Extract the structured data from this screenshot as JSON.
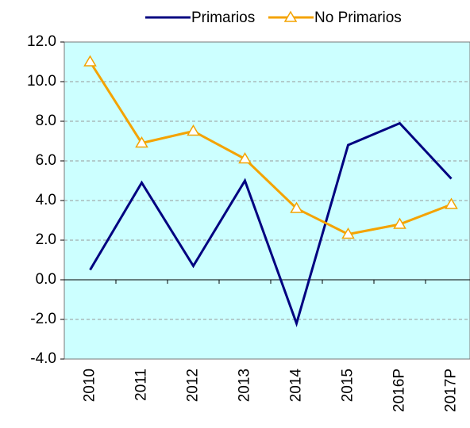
{
  "chart_data": {
    "type": "line",
    "categories": [
      "2010",
      "2011",
      "2012",
      "2013",
      "2014",
      "2015",
      "2016P",
      "2017P"
    ],
    "series": [
      {
        "name": "Primarios",
        "color": "#000080",
        "values": [
          0.5,
          4.9,
          0.7,
          5.0,
          -2.2,
          6.8,
          7.9,
          5.1
        ]
      },
      {
        "name": "No Primarios",
        "color": "#f4a300",
        "marker": "triangle",
        "values": [
          11.0,
          6.9,
          7.5,
          6.1,
          3.6,
          2.3,
          2.8,
          3.8
        ]
      }
    ],
    "ylim": [
      -4,
      12
    ],
    "yticks": [
      {
        "value": -4,
        "label": "-4.0"
      },
      {
        "value": -2,
        "label": "-2.0"
      },
      {
        "value": 0,
        "label": "0.0"
      },
      {
        "value": 2,
        "label": "2.0"
      },
      {
        "value": 4,
        "label": "4.0"
      },
      {
        "value": 6,
        "label": "6.0"
      },
      {
        "value": 8,
        "label": "8.0"
      },
      {
        "value": 10,
        "label": "10.0"
      },
      {
        "value": 12,
        "label": "12.0"
      }
    ],
    "grid": true,
    "legend": "top",
    "plot_background": "#ccffff"
  }
}
